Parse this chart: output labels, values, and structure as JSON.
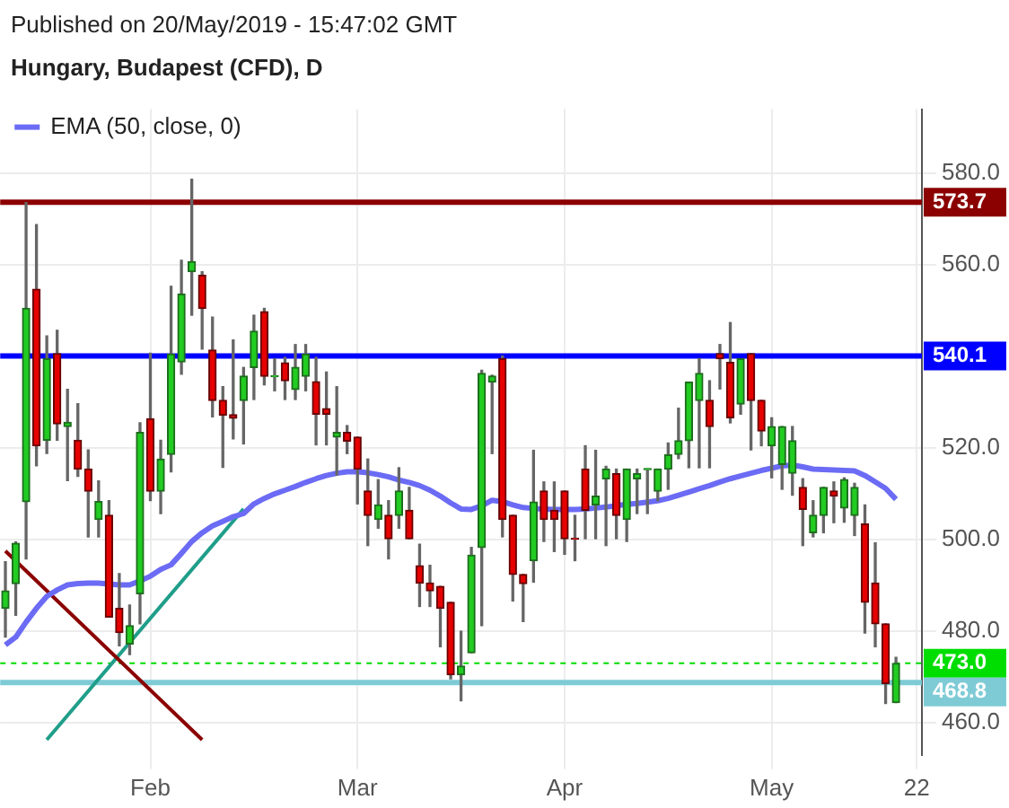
{
  "chart_data": {
    "type": "candlestick",
    "title": "Hungary, Budapest (CFD), D",
    "subtitle": "Published on 20/May/2019 - 15:47:02 GMT",
    "categories": [
      null,
      null,
      null,
      null,
      null,
      null,
      null,
      null,
      null,
      null,
      null,
      null,
      null,
      null,
      "Feb",
      null,
      null,
      null,
      null,
      null,
      null,
      null,
      null,
      null,
      null,
      null,
      null,
      null,
      null,
      null,
      null,
      null,
      null,
      null,
      "Mar",
      null,
      null,
      null,
      null,
      null,
      null,
      null,
      null,
      null,
      null,
      null,
      null,
      null,
      null,
      null,
      null,
      null,
      null,
      null,
      "Apr",
      null,
      null,
      null,
      null,
      null,
      null,
      null,
      null,
      null,
      null,
      null,
      null,
      null,
      null,
      null,
      null,
      null,
      null,
      null,
      "May",
      null,
      null,
      null,
      null,
      null,
      null,
      null,
      null,
      null,
      null,
      null,
      null,
      null,
      "22"
    ],
    "ohlc": [
      [
        485.0,
        495.2,
        478.7,
        488.8
      ],
      [
        490.4,
        499.5,
        483.5,
        499.2
      ],
      [
        508.3,
        573.6,
        495.8,
        550.5
      ],
      [
        554.7,
        568.8,
        516.1,
        520.5
      ],
      [
        521.7,
        544.5,
        518.8,
        539.5
      ],
      [
        540.6,
        545.7,
        521.7,
        525.3
      ],
      [
        524.7,
        532.8,
        512.9,
        525.6
      ],
      [
        521.7,
        529.7,
        513.8,
        515.4
      ],
      [
        515.4,
        519.6,
        500.6,
        510.6
      ],
      [
        504.4,
        512.8,
        500.6,
        508.3
      ],
      [
        505.3,
        508.5,
        483.1,
        483.1
      ],
      [
        485.0,
        492.6,
        476.8,
        479.7
      ],
      [
        477.2,
        485.7,
        474.9,
        481.2
      ],
      [
        488.2,
        525.5,
        481.6,
        523.4
      ],
      [
        526.4,
        540.7,
        508.5,
        510.6
      ],
      [
        510.6,
        521.7,
        505.7,
        517.6
      ],
      [
        518.6,
        555.3,
        514.8,
        540.5
      ],
      [
        538.8,
        561.0,
        536.1,
        553.6
      ],
      [
        558.5,
        578.7,
        549.0,
        560.7
      ],
      [
        557.7,
        558.5,
        541.6,
        550.5
      ],
      [
        541.4,
        548.6,
        526.8,
        530.4
      ],
      [
        530.4,
        533.4,
        515.8,
        527.2
      ],
      [
        527.3,
        543.6,
        522.0,
        526.5
      ],
      [
        530.4,
        537.6,
        520.9,
        535.7
      ],
      [
        537.6,
        549.0,
        530.6,
        545.5
      ],
      [
        549.8,
        550.5,
        533.8,
        535.7
      ],
      [
        535.6,
        539.5,
        532.5,
        535.8
      ],
      [
        538.6,
        539.8,
        530.6,
        534.7
      ],
      [
        532.8,
        542.6,
        530.6,
        537.6
      ],
      [
        535.7,
        542.6,
        532.5,
        540.5
      ],
      [
        534.5,
        539.8,
        520.7,
        527.4
      ],
      [
        528.6,
        536.6,
        520.7,
        527.4
      ],
      [
        522.4,
        533.4,
        514.1,
        523.4
      ],
      [
        523.4,
        524.9,
        518.8,
        521.5
      ],
      [
        522.4,
        522.4,
        507.8,
        515.4
      ],
      [
        510.6,
        517.6,
        498.7,
        505.3
      ],
      [
        504.4,
        513.1,
        502.5,
        507.6
      ],
      [
        505.3,
        508.5,
        495.8,
        500.2
      ],
      [
        505.3,
        515.7,
        502.5,
        510.6
      ],
      [
        506.4,
        511.4,
        500.2,
        500.2
      ],
      [
        494.3,
        499.0,
        485.4,
        490.5
      ],
      [
        490.5,
        494.4,
        485.4,
        488.8
      ],
      [
        489.8,
        489.8,
        476.6,
        485.0
      ],
      [
        486.3,
        486.3,
        469.6,
        470.5
      ],
      [
        470.5,
        480.0,
        464.8,
        472.4
      ],
      [
        475.3,
        498.3,
        475.3,
        496.6
      ],
      [
        498.3,
        537.0,
        481.2,
        536.3
      ],
      [
        534.4,
        535.9,
        518.8,
        535.7
      ],
      [
        539.5,
        540.1,
        500.6,
        504.4
      ],
      [
        505.3,
        505.3,
        486.6,
        492.4
      ],
      [
        492.4,
        492.4,
        482.1,
        490.4
      ],
      [
        495.4,
        519.5,
        490.7,
        508.2
      ],
      [
        510.6,
        512.6,
        499.6,
        504.4
      ],
      [
        506.4,
        512.6,
        497.4,
        504.4
      ],
      [
        510.6,
        510.6,
        496.8,
        500.2
      ],
      [
        500.3,
        505.3,
        495.4,
        500.1
      ],
      [
        515.4,
        520.5,
        500.2,
        506.4
      ],
      [
        507.6,
        519.5,
        500.2,
        509.5
      ],
      [
        513.3,
        516.0,
        498.7,
        515.4
      ],
      [
        514.4,
        515.4,
        500.2,
        505.3
      ],
      [
        504.4,
        515.4,
        499.6,
        515.4
      ],
      [
        513.3,
        515.4,
        505.7,
        514.4
      ],
      [
        515.3,
        515.5,
        505.7,
        515.5
      ],
      [
        510.6,
        515.4,
        508.5,
        515.4
      ],
      [
        515.4,
        521.1,
        511.0,
        518.5
      ],
      [
        518.6,
        528.7,
        517.7,
        521.6
      ],
      [
        521.6,
        534.4,
        515.7,
        534.4
      ],
      [
        530.4,
        539.5,
        515.7,
        536.3
      ],
      [
        530.4,
        534.7,
        515.7,
        524.7
      ],
      [
        540.6,
        542.6,
        532.9,
        539.5
      ],
      [
        538.7,
        547.4,
        525.5,
        526.6
      ],
      [
        529.6,
        539.5,
        527.4,
        539.5
      ],
      [
        540.6,
        540.6,
        519.6,
        530.4
      ],
      [
        530.4,
        530.4,
        520.5,
        523.7
      ],
      [
        520.5,
        526.6,
        513.5,
        524.7
      ],
      [
        516.4,
        524.7,
        511.0,
        524.7
      ],
      [
        514.5,
        524.7,
        509.7,
        521.6
      ],
      [
        511.4,
        513.3,
        498.7,
        506.6
      ],
      [
        501.5,
        508.5,
        500.6,
        505.3
      ],
      [
        505.3,
        511.4,
        501.5,
        511.4
      ],
      [
        510.6,
        512.6,
        503.7,
        509.5
      ],
      [
        506.9,
        513.5,
        503.8,
        513.1
      ],
      [
        505.3,
        512.3,
        500.9,
        511.4
      ],
      [
        503.4,
        507.6,
        479.6,
        486.3
      ],
      [
        490.5,
        499.3,
        476.6,
        481.6
      ],
      [
        481.6,
        481.6,
        464.2,
        468.6
      ],
      [
        464.4,
        474.3,
        464.4,
        473.0
      ],
      null,
      null
    ],
    "series": [
      {
        "type": "line",
        "name": "EMA (50, close, 0)",
        "color": "#6b6bf5",
        "values": [
          477.0,
          478.7,
          482,
          485,
          487.6,
          489,
          490.1,
          490.4,
          490.5,
          490.5,
          490.3,
          490.1,
          490.1,
          491,
          492,
          493.5,
          494.5,
          497,
          499.6,
          501.5,
          503,
          504,
          505,
          505.7,
          507.8,
          509,
          510,
          510.8,
          511.6,
          512.5,
          513.3,
          514,
          514.5,
          514.8,
          514.8,
          514.6,
          514.2,
          513.7,
          513,
          512.5,
          511.8,
          510.8,
          509.5,
          508,
          506.7,
          506.6,
          507.4,
          508.6,
          508.3,
          507.6,
          507,
          506.8,
          506.7,
          506.6,
          506.6,
          506.6,
          506.7,
          506.9,
          507.1,
          507.4,
          507.7,
          507.9,
          508.2,
          508.5,
          509,
          509.7,
          510.4,
          511.1,
          511.8,
          512.6,
          513.3,
          513.9,
          514.5,
          515.1,
          515.6,
          516.1,
          516.3,
          515.9,
          515.4,
          515.3,
          515.2,
          515.1,
          515.0,
          514,
          512.6,
          511.2,
          508.8,
          null,
          null
        ]
      },
      {
        "type": "line",
        "color": "#8b0000",
        "values": [
          497.5,
          null,
          null,
          null,
          null,
          null,
          null,
          null,
          null,
          null,
          null,
          null,
          null,
          null,
          null,
          null,
          null,
          null,
          null,
          456.3,
          null,
          null,
          null,
          null,
          null,
          null,
          null,
          null,
          null,
          null,
          null,
          null,
          null,
          null,
          null,
          null,
          null,
          null,
          null,
          null,
          null,
          null,
          null,
          null,
          null,
          null,
          null,
          null,
          null,
          null,
          null,
          null,
          null,
          null,
          null,
          null,
          null,
          null,
          null,
          null,
          null,
          null,
          null,
          null,
          null,
          null,
          null,
          null,
          null,
          null,
          null,
          null,
          null,
          null,
          null,
          null,
          null,
          null,
          null,
          null,
          null,
          null,
          null,
          null,
          null,
          null,
          null,
          null,
          null
        ]
      },
      {
        "type": "line",
        "color": "#1f9e89",
        "values": [
          null,
          null,
          null,
          null,
          456.3,
          null,
          null,
          null,
          null,
          null,
          null,
          null,
          null,
          null,
          null,
          null,
          null,
          null,
          null,
          null,
          null,
          null,
          null,
          506.7,
          null,
          null,
          null,
          null,
          null,
          null,
          null,
          null,
          null,
          null,
          null,
          null,
          null,
          null,
          null,
          null,
          null,
          null,
          null,
          null,
          null,
          null,
          null,
          null,
          null,
          null,
          null,
          null,
          null,
          null,
          null,
          null,
          null,
          null,
          null,
          null,
          null,
          null,
          null,
          null,
          null,
          null,
          null,
          null,
          null,
          null,
          null,
          null,
          null,
          null,
          null,
          null,
          null,
          null,
          null,
          null,
          null,
          null,
          null,
          null,
          null,
          null,
          null,
          null,
          null
        ]
      }
    ],
    "ylim": [
      453,
      594
    ],
    "yticks": [
      {
        "value": 460,
        "label": "460.0"
      },
      {
        "value": 480,
        "label": "480.0"
      },
      {
        "value": 500,
        "label": "500.0"
      },
      {
        "value": 520,
        "label": "520.0"
      },
      {
        "value": 540,
        "label": null
      },
      {
        "value": 560,
        "label": "560.0"
      },
      {
        "value": 580,
        "label": "580.0"
      }
    ],
    "ref_lines": [
      {
        "axis": "y",
        "value": 573.7,
        "label": "573.7",
        "color": "#8b0000"
      },
      {
        "axis": "y",
        "value": 540.1,
        "label": "540.1",
        "color": "#0000ff"
      },
      {
        "axis": "y",
        "value": 473.0,
        "label": "473.0",
        "color": "#00dd00",
        "line_style": "dashed"
      },
      {
        "axis": "y",
        "value": 468.8,
        "label": "468.8",
        "color": "#7ecbd6"
      }
    ],
    "grid": true,
    "legend": "top left",
    "marker": "none"
  }
}
